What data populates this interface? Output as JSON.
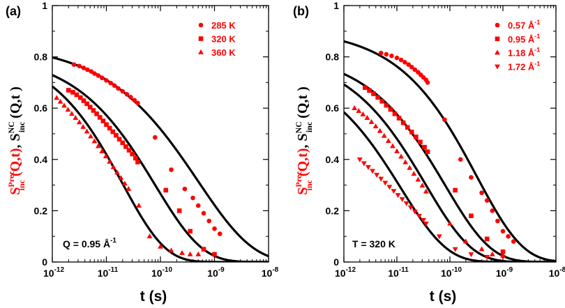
{
  "chart_data": [
    {
      "type": "scatter",
      "panel_label": "(a)",
      "xlabel": "t (s)",
      "ylabel": {
        "red_part": {
          "base": "S",
          "sub": "inc",
          "sup": "Prec",
          "args": "(Q,t)"
        },
        "separator": ",",
        "black_part": {
          "base": "S",
          "sub": "inc",
          "sup": "NC",
          "args": "(Q,t )"
        }
      },
      "xscale": "log",
      "xlim_exp": [
        -12,
        -8
      ],
      "ylim": [
        0,
        1
      ],
      "xtick_base": "10",
      "xtick_exponents": [
        "-12",
        "-11",
        "-10",
        "-9",
        "-8"
      ],
      "ytick_labels": [
        "0",
        "0.2",
        "0.4",
        "0.6",
        "0.8",
        "1"
      ],
      "annotation": {
        "text": "Q = 0.95 Å",
        "sup": "-1"
      },
      "marker_color": "#ff0000",
      "fit_color": "#000000",
      "series": [
        {
          "name": "285 K",
          "marker": "circle",
          "fit": {
            "f0": 0.855,
            "tau": 5e-10,
            "beta": 0.43
          },
          "points_log_t": [
            -11.6,
            -11.5,
            -11.42,
            -11.35,
            -11.28,
            -11.22,
            -11.15,
            -11.08,
            -11.0,
            -10.92,
            -10.85,
            -10.78,
            -10.7,
            -10.62,
            -10.55,
            -10.48,
            -10.42,
            -10.1,
            -9.8,
            -9.55,
            -9.4,
            -9.3,
            -9.2,
            -9.1,
            -9.0,
            -8.9
          ],
          "values": [
            0.77,
            0.764,
            0.757,
            0.75,
            0.743,
            0.735,
            0.727,
            0.718,
            0.708,
            0.698,
            0.688,
            0.677,
            0.666,
            0.654,
            0.643,
            0.631,
            0.62,
            0.486,
            0.36,
            0.285,
            0.25,
            0.22,
            0.19,
            0.16,
            0.13,
            0.11
          ]
        },
        {
          "name": "320 K",
          "marker": "square",
          "fit": {
            "f0": 0.815,
            "tau": 8e-11,
            "beta": 0.5
          },
          "points_log_t": [
            -11.7,
            -11.62,
            -11.55,
            -11.48,
            -11.42,
            -11.36,
            -11.3,
            -11.24,
            -11.18,
            -11.12,
            -11.06,
            -11.0,
            -10.94,
            -10.88,
            -10.82,
            -10.76,
            -10.7,
            -10.64,
            -10.58,
            -10.52,
            -10.46,
            -10.42,
            -9.9,
            -9.65,
            -9.45,
            -9.2,
            -9.0
          ],
          "values": [
            0.67,
            0.662,
            0.652,
            0.641,
            0.629,
            0.617,
            0.604,
            0.591,
            0.578,
            0.564,
            0.55,
            0.536,
            0.522,
            0.508,
            0.494,
            0.479,
            0.465,
            0.45,
            0.436,
            0.421,
            0.405,
            0.39,
            0.28,
            0.2,
            0.12,
            0.05,
            0.03
          ]
        },
        {
          "name": "360 K",
          "marker": "triangle",
          "fit": {
            "f0": 0.83,
            "tau": 2e-11,
            "beta": 0.55
          },
          "points_log_t": [
            -11.92,
            -11.85,
            -11.78,
            -11.71,
            -11.64,
            -11.57,
            -11.5,
            -11.43,
            -11.36,
            -11.29,
            -11.22,
            -11.15,
            -11.08,
            -11.01,
            -10.94,
            -10.87,
            -10.8,
            -10.73,
            -10.66,
            -10.59,
            -10.4,
            -10.2,
            -10.0,
            -9.8,
            -9.6,
            -9.45,
            -9.3
          ],
          "values": [
            0.64,
            0.625,
            0.61,
            0.594,
            0.578,
            0.562,
            0.545,
            0.527,
            0.509,
            0.49,
            0.471,
            0.452,
            0.432,
            0.412,
            0.391,
            0.37,
            0.349,
            0.328,
            0.306,
            0.285,
            0.22,
            0.1,
            0.06,
            0.045,
            0.035,
            0.03,
            0.03
          ]
        }
      ]
    },
    {
      "type": "scatter",
      "panel_label": "(b)",
      "xlabel": "t (s)",
      "ylabel": {
        "red_part": {
          "base": "S",
          "sub": "inc",
          "sup": "Prec",
          "args": "(Q,t)"
        },
        "separator": ",",
        "black_part": {
          "base": "S",
          "sub": "inc",
          "sup": "NC",
          "args": "(Q,t )"
        }
      },
      "xscale": "log",
      "xlim_exp": [
        -12,
        -8
      ],
      "ylim": [
        0,
        1
      ],
      "xtick_base": "10",
      "xtick_exponents": [
        "-12",
        "-11",
        "-10",
        "-9",
        "-8"
      ],
      "ytick_labels": [
        "0",
        "0.2",
        "0.4",
        "0.6",
        "0.8",
        "1"
      ],
      "annotation": {
        "text": "T = 320 K"
      },
      "marker_color": "#ff0000",
      "fit_color": "#000000",
      "series": [
        {
          "name": "0.57 Å",
          "name_sup": "-1",
          "marker": "circle",
          "fit": {
            "f0": 0.91,
            "tau": 3.2e-10,
            "beta": 0.5
          },
          "points_log_t": [
            -11.3,
            -11.2,
            -11.1,
            -11.0,
            -10.92,
            -10.85,
            -10.78,
            -10.72,
            -10.66,
            -10.6,
            -10.55,
            -10.5,
            -10.45,
            -10.42,
            -10.1,
            -9.8,
            -9.6,
            -9.4,
            -9.3,
            -9.2,
            -9.1,
            -9.0,
            -8.9,
            -8.8
          ],
          "values": [
            0.815,
            0.81,
            0.804,
            0.796,
            0.788,
            0.779,
            0.77,
            0.76,
            0.75,
            0.74,
            0.73,
            0.72,
            0.71,
            0.7,
            0.555,
            0.4,
            0.33,
            0.27,
            0.24,
            0.2,
            0.16,
            0.12,
            0.1,
            0.08
          ]
        },
        {
          "name": "0.95 Å",
          "name_sup": "-1",
          "marker": "square",
          "fit": {
            "f0": 0.82,
            "tau": 8e-11,
            "beta": 0.5
          },
          "points_log_t": [
            -11.6,
            -11.52,
            -11.44,
            -11.36,
            -11.28,
            -11.2,
            -11.12,
            -11.04,
            -10.96,
            -10.88,
            -10.8,
            -10.72,
            -10.64,
            -10.56,
            -10.48,
            -10.42,
            -9.9,
            -9.6,
            -9.3,
            -9.0
          ],
          "values": [
            0.68,
            0.669,
            0.656,
            0.642,
            0.627,
            0.611,
            0.595,
            0.578,
            0.561,
            0.543,
            0.525,
            0.507,
            0.488,
            0.468,
            0.448,
            0.43,
            0.28,
            0.18,
            0.09,
            0.04
          ]
        },
        {
          "name": "1.18 Å",
          "name_sup": "-1",
          "marker": "triangle",
          "fit": {
            "f0": 0.82,
            "tau": 3.5e-11,
            "beta": 0.5
          },
          "points_log_t": [
            -11.8,
            -11.72,
            -11.64,
            -11.56,
            -11.48,
            -11.4,
            -11.32,
            -11.24,
            -11.16,
            -11.08,
            -11.0,
            -10.92,
            -10.84,
            -10.76,
            -10.68,
            -10.6,
            -10.52,
            -10.45,
            -10.0,
            -9.7,
            -9.4,
            -9.2,
            -9.0
          ],
          "values": [
            0.6,
            0.589,
            0.576,
            0.562,
            0.546,
            0.529,
            0.511,
            0.492,
            0.472,
            0.452,
            0.432,
            0.411,
            0.389,
            0.367,
            0.344,
            0.321,
            0.298,
            0.275,
            0.15,
            0.08,
            0.05,
            0.03,
            0.025
          ]
        },
        {
          "name": "1.72 Å",
          "name_sup": "-1",
          "marker": "triangle-down",
          "fit": {
            "f0": 0.78,
            "tau": 1.2e-11,
            "beta": 0.5
          },
          "points_log_t": [
            -11.7,
            -11.62,
            -11.54,
            -11.46,
            -11.38,
            -11.3,
            -11.22,
            -11.14,
            -11.06,
            -10.98,
            -10.9,
            -10.82,
            -10.74,
            -10.66,
            -10.58,
            -10.5,
            -10.45,
            -10.2,
            -9.9,
            -9.6,
            -9.3,
            -9.0
          ],
          "values": [
            0.4,
            0.385,
            0.37,
            0.355,
            0.34,
            0.325,
            0.309,
            0.293,
            0.277,
            0.261,
            0.245,
            0.229,
            0.213,
            0.197,
            0.18,
            0.164,
            0.15,
            0.1,
            0.05,
            0.03,
            0.02,
            0.02
          ]
        }
      ]
    }
  ]
}
